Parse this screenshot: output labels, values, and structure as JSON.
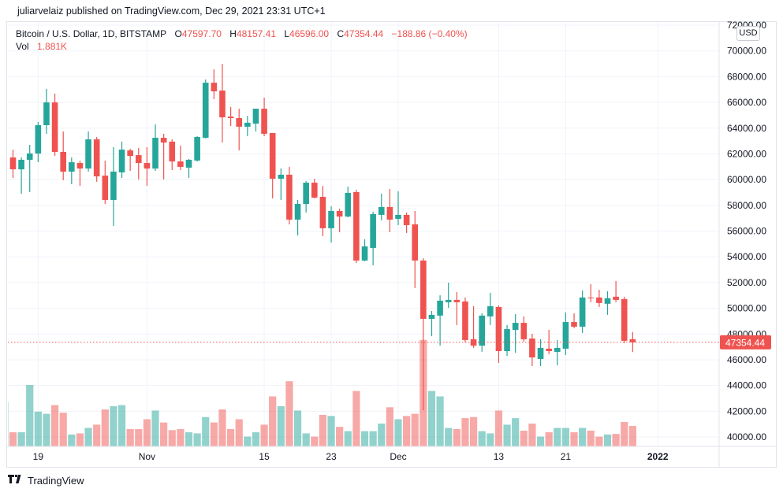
{
  "publisher_line": "juliarvelaiz published on TradingView.com, Dec 29, 2021 23:31 UTC+1",
  "legend": {
    "symbol": "Bitcoin / U.S. Dollar, 1D, BITSTAMP",
    "o_label": "O",
    "o_value": "47597.70",
    "h_label": "H",
    "h_value": "48157.41",
    "l_label": "L",
    "l_value": "46596.00",
    "c_label": "C",
    "c_value": "47354.44",
    "change": "−188.86 (−0.40%)",
    "vol_label": "Vol",
    "vol_value": "1.881K"
  },
  "currency_label": "USD",
  "footer": {
    "brand": "TradingView",
    "logo_icon": "tradingview-logo-icon"
  },
  "colors": {
    "up": "#26a69a",
    "down": "#ef5350",
    "up_volume": "#26a69a80",
    "down_volume": "#ef535080",
    "grid": "#f0f3fa"
  },
  "chart_data": {
    "type": "candlestick",
    "title": "",
    "interval": "1D",
    "ylim": [
      39400,
      72000
    ],
    "grid": true,
    "price_axis_ticks": [
      "72000.00",
      "70000.00",
      "68000.00",
      "66000.00",
      "64000.00",
      "62000.00",
      "60000.00",
      "58000.00",
      "56000.00",
      "54000.00",
      "52000.00",
      "50000.00",
      "48000.00",
      "46000.00",
      "44000.00",
      "42000.00",
      "40000.00"
    ],
    "last_price_label": "47354.44",
    "time_axis_ticks": [
      {
        "date": "Oct 19",
        "label": "19"
      },
      {
        "date": "Nov 1",
        "label": "Nov"
      },
      {
        "date": "Nov 15",
        "label": "15"
      },
      {
        "date": "Nov 23",
        "label": "23"
      },
      {
        "date": "Dec 1",
        "label": "Dec"
      },
      {
        "date": "Dec 13",
        "label": "13"
      },
      {
        "date": "Dec 21",
        "label": "21"
      },
      {
        "date": "Jan 1",
        "label": "2022"
      }
    ],
    "columns": [
      "date",
      "open",
      "high",
      "low",
      "close",
      "volume_k"
    ],
    "candles": [
      [
        "Oct 15",
        57320,
        62900,
        56900,
        61660,
        4.1
      ],
      [
        "Oct 16",
        61720,
        62330,
        60130,
        60800,
        1.3
      ],
      [
        "Oct 17",
        60800,
        61720,
        58900,
        61540,
        1.3
      ],
      [
        "Oct 18",
        61540,
        62700,
        59030,
        62030,
        5.65
      ],
      [
        "Oct 19",
        62030,
        64480,
        61350,
        64230,
        3.2
      ],
      [
        "Oct 20",
        64230,
        67050,
        63560,
        66000,
        3.0
      ],
      [
        "Oct 21",
        66000,
        66680,
        61840,
        62150,
        3.8
      ],
      [
        "Oct 22",
        62150,
        63740,
        59950,
        60620,
        3.1
      ],
      [
        "Oct 23",
        60620,
        61720,
        59640,
        61350,
        1.1
      ],
      [
        "Oct 24",
        61290,
        61470,
        59520,
        60860,
        1.2
      ],
      [
        "Oct 25",
        60860,
        63740,
        60620,
        63130,
        1.7
      ],
      [
        "Oct 26",
        63130,
        63310,
        59830,
        60250,
        2.0
      ],
      [
        "Oct 27",
        60310,
        61470,
        58110,
        58420,
        3.4
      ],
      [
        "Oct 28",
        58420,
        62520,
        56400,
        60620,
        3.7
      ],
      [
        "Oct 29",
        60560,
        62950,
        60130,
        62330,
        3.8
      ],
      [
        "Oct 30",
        62270,
        62400,
        60680,
        61840,
        1.6
      ],
      [
        "Oct 31",
        61900,
        62460,
        60010,
        61290,
        1.6
      ],
      [
        "Nov 1",
        61290,
        62520,
        59520,
        60860,
        2.5
      ],
      [
        "Nov 2",
        60860,
        64290,
        60680,
        63250,
        3.3
      ],
      [
        "Nov 3",
        63250,
        63560,
        60010,
        62880,
        2.2
      ],
      [
        "Nov 4",
        62950,
        63130,
        60740,
        61410,
        1.5
      ],
      [
        "Nov 5",
        61410,
        62640,
        60740,
        60990,
        1.6
      ],
      [
        "Nov 6",
        60930,
        61600,
        60130,
        61540,
        1.3
      ],
      [
        "Nov 7",
        61480,
        63370,
        61410,
        63310,
        1.2
      ],
      [
        "Nov 8",
        63250,
        67780,
        63200,
        67530,
        2.7
      ],
      [
        "Nov 9",
        67530,
        68570,
        66250,
        66860,
        2.2
      ],
      [
        "Nov 10",
        66920,
        69000,
        62880,
        64840,
        3.4
      ],
      [
        "Nov 11",
        64900,
        65640,
        64170,
        64780,
        1.6
      ],
      [
        "Nov 12",
        64780,
        65510,
        62270,
        64110,
        2.5
      ],
      [
        "Nov 13",
        64110,
        64960,
        63370,
        64420,
        0.9
      ],
      [
        "Nov 14",
        64350,
        65510,
        63740,
        65510,
        1.3
      ],
      [
        "Nov 15",
        65510,
        66370,
        63370,
        63560,
        2.0
      ],
      [
        "Nov 16",
        63620,
        63620,
        58540,
        60070,
        4.6
      ],
      [
        "Nov 17",
        60070,
        60870,
        58420,
        60380,
        3.7
      ],
      [
        "Nov 18",
        60380,
        60990,
        56520,
        56890,
        6.0
      ],
      [
        "Nov 19",
        56890,
        58420,
        55660,
        58110,
        3.3
      ],
      [
        "Nov 20",
        58110,
        59890,
        57440,
        59760,
        1.2
      ],
      [
        "Nov 21",
        59760,
        60070,
        58540,
        58600,
        0.9
      ],
      [
        "Nov 22",
        58660,
        59520,
        55600,
        56220,
        2.9
      ],
      [
        "Nov 23",
        56220,
        57930,
        55110,
        57560,
        2.8
      ],
      [
        "Nov 24",
        57560,
        57740,
        55910,
        57130,
        1.8
      ],
      [
        "Nov 25",
        57130,
        59460,
        57070,
        58970,
        1.4
      ],
      [
        "Nov 26",
        59030,
        59210,
        53520,
        53710,
        5.1
      ],
      [
        "Nov 27",
        53710,
        55360,
        53650,
        54810,
        1.4
      ],
      [
        "Nov 28",
        54690,
        57500,
        53340,
        57320,
        1.4
      ],
      [
        "Nov 29",
        57260,
        58910,
        56830,
        57870,
        2.1
      ],
      [
        "Nov 30",
        57870,
        59270,
        55910,
        56890,
        3.6
      ],
      [
        "Dec 1",
        56950,
        59090,
        56460,
        57260,
        2.5
      ],
      [
        "Dec 2",
        57260,
        57440,
        55850,
        56460,
        2.8
      ],
      [
        "Dec 3",
        56520,
        57560,
        51570,
        53710,
        3.0
      ],
      [
        "Dec 4",
        53710,
        53890,
        42080,
        49180,
        9.8
      ],
      [
        "Dec 5",
        49180,
        49790,
        47830,
        49490,
        5.1
      ],
      [
        "Dec 6",
        49430,
        51010,
        47100,
        50590,
        4.6
      ],
      [
        "Dec 7",
        50470,
        51990,
        50040,
        50650,
        1.7
      ],
      [
        "Dec 8",
        50650,
        51260,
        48690,
        50470,
        1.6
      ],
      [
        "Dec 9",
        50530,
        50840,
        47350,
        47530,
        2.6
      ],
      [
        "Dec 10",
        47590,
        50160,
        46920,
        47100,
        2.7
      ],
      [
        "Dec 11",
        47100,
        49610,
        46620,
        49430,
        1.4
      ],
      [
        "Dec 12",
        49370,
        51200,
        48690,
        50160,
        1.2
      ],
      [
        "Dec 13",
        50100,
        50220,
        45750,
        46670,
        3.3
      ],
      [
        "Dec 14",
        46670,
        48690,
        46300,
        48380,
        2.0
      ],
      [
        "Dec 15",
        48320,
        49550,
        46550,
        48870,
        2.6
      ],
      [
        "Dec 16",
        48870,
        49370,
        47410,
        47590,
        1.45
      ],
      [
        "Dec 17",
        47650,
        48020,
        45510,
        46180,
        2.1
      ],
      [
        "Dec 18",
        46060,
        47600,
        45510,
        46920,
        0.9
      ],
      [
        "Dec 19",
        46860,
        48320,
        46430,
        46670,
        1.3
      ],
      [
        "Dec 20",
        46610,
        47530,
        45570,
        46920,
        1.7
      ],
      [
        "Dec 21",
        46860,
        49670,
        46360,
        48930,
        1.7
      ],
      [
        "Dec 22",
        48930,
        49610,
        48450,
        48570,
        1.3
      ],
      [
        "Dec 23",
        48570,
        51380,
        48080,
        50840,
        1.7
      ],
      [
        "Dec 24",
        50840,
        51870,
        50470,
        50780,
        1.45
      ],
      [
        "Dec 25",
        50840,
        51440,
        50100,
        50410,
        0.9
      ],
      [
        "Dec 26",
        50350,
        51320,
        49490,
        50780,
        1.1
      ],
      [
        "Dec 27",
        50900,
        52120,
        50470,
        50650,
        1.15
      ],
      [
        "Dec 28",
        50720,
        50900,
        47290,
        47470,
        2.25
      ],
      [
        "Dec 29",
        47597.7,
        48157.41,
        46596.0,
        47354.44,
        1.881
      ]
    ]
  }
}
